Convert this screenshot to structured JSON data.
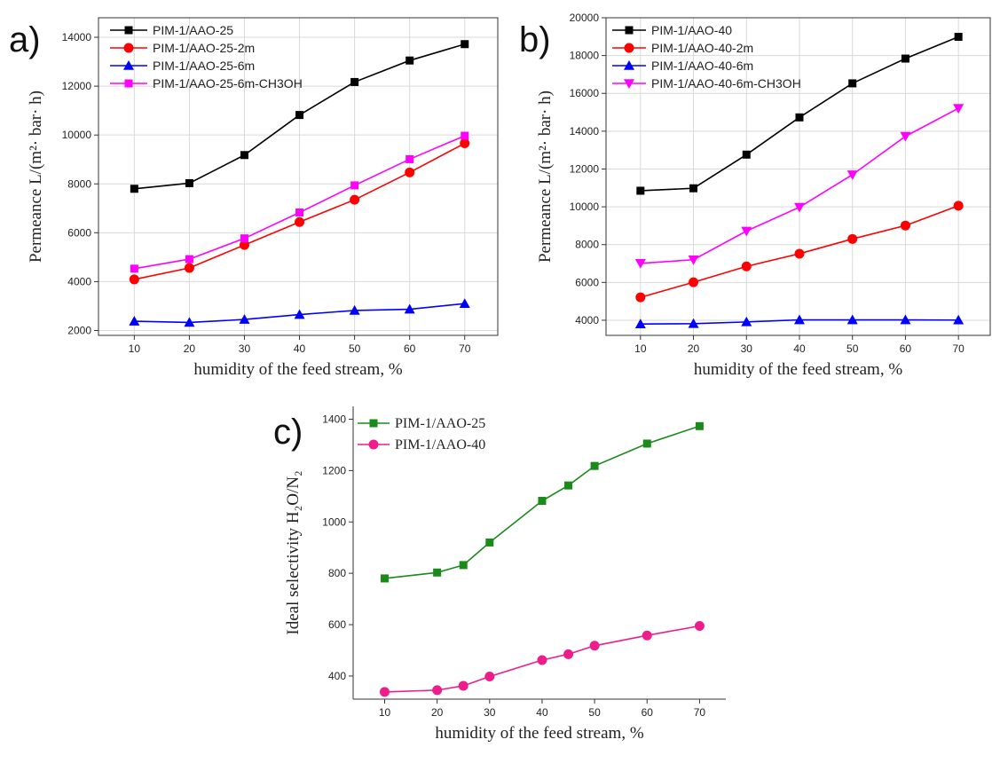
{
  "chart_data": [
    {
      "panel": "a)",
      "type": "line",
      "xlabel": "humidity of the feed stream, %",
      "ylabel": "Permeance L/(m²· bar· h)",
      "x_ticks": [
        10,
        20,
        30,
        40,
        50,
        60,
        70
      ],
      "y_ticks": [
        2000,
        4000,
        6000,
        8000,
        10000,
        12000,
        14000
      ],
      "xlim": [
        3.5,
        76
      ],
      "ylim": [
        1800,
        14800
      ],
      "grid": true,
      "legend_position": "top-left",
      "x": [
        10,
        20,
        30,
        40,
        50,
        60,
        70
      ],
      "series": [
        {
          "name": "PIM-1/AAO-25",
          "color": "#000000",
          "marker": "square",
          "values": [
            7800,
            8030,
            9180,
            10820,
            12170,
            13050,
            13720
          ]
        },
        {
          "name": "PIM-1/AAO-25-2m",
          "color": "#ff0000",
          "marker": "circle",
          "values": [
            4090,
            4560,
            5500,
            6440,
            7350,
            8470,
            9660
          ]
        },
        {
          "name": "PIM-1/AAO-25-6m",
          "color": "#0000ff",
          "marker": "triangle-up",
          "values": [
            2380,
            2330,
            2450,
            2650,
            2820,
            2870,
            3100
          ]
        },
        {
          "name": "PIM-1/AAO-25-6m-CH3OH",
          "color": "#ff00ff",
          "marker": "square",
          "values": [
            4530,
            4920,
            5770,
            6830,
            7940,
            9010,
            9970
          ]
        }
      ]
    },
    {
      "panel": "b)",
      "type": "line",
      "xlabel": "humidity of the feed stream, %",
      "ylabel": "Permeance L/(m²· bar· h)",
      "x_ticks": [
        10,
        20,
        30,
        40,
        50,
        60,
        70
      ],
      "y_ticks": [
        4000,
        6000,
        8000,
        10000,
        12000,
        14000,
        16000,
        18000,
        20000
      ],
      "xlim": [
        3.5,
        76
      ],
      "ylim": [
        3200,
        20000
      ],
      "grid": true,
      "legend_position": "top-left",
      "x": [
        10,
        20,
        30,
        40,
        50,
        60,
        70
      ],
      "series": [
        {
          "name": "PIM-1/AAO-40",
          "color": "#000000",
          "marker": "square",
          "values": [
            10850,
            10980,
            12760,
            14730,
            16530,
            17840,
            18990
          ]
        },
        {
          "name": "PIM-1/AAO-40-2m",
          "color": "#ff0000",
          "marker": "circle",
          "values": [
            5210,
            6010,
            6850,
            7520,
            8300,
            9010,
            10060
          ]
        },
        {
          "name": "PIM-1/AAO-40-6m",
          "color": "#0000ff",
          "marker": "triangle-up",
          "values": [
            3800,
            3820,
            3910,
            4020,
            4020,
            4020,
            4010
          ]
        },
        {
          "name": "PIM-1/AAO-40-6m-CH3OH",
          "color": "#ff00ff",
          "marker": "triangle-down",
          "values": [
            7010,
            7200,
            8720,
            9980,
            11700,
            13730,
            15210
          ]
        }
      ]
    },
    {
      "panel": "c)",
      "type": "line",
      "xlabel": "humidity of the feed stream, %",
      "ylabel": "Ideal selectivity H₂O/N₂",
      "x_ticks": [
        10,
        20,
        30,
        40,
        50,
        60,
        70
      ],
      "y_ticks": [
        400,
        600,
        800,
        1000,
        1200,
        1400
      ],
      "xlim": [
        4,
        75
      ],
      "ylim": [
        310,
        1450
      ],
      "grid": false,
      "legend_position": "top-left",
      "series": [
        {
          "name": "PIM-1/AAO-25",
          "color": "#1a8a1a",
          "marker": "square",
          "x": [
            10,
            20,
            25,
            30,
            40,
            45,
            50,
            60,
            70
          ],
          "values": [
            780,
            803,
            832,
            920,
            1082,
            1142,
            1218,
            1305,
            1373
          ]
        },
        {
          "name": "PIM-1/AAO-40",
          "color": "#ee1d8c",
          "marker": "circle",
          "x": [
            10,
            20,
            25,
            30,
            40,
            45,
            50,
            60,
            70
          ],
          "values": [
            338,
            345,
            362,
            398,
            462,
            485,
            518,
            558,
            595
          ]
        }
      ]
    }
  ]
}
